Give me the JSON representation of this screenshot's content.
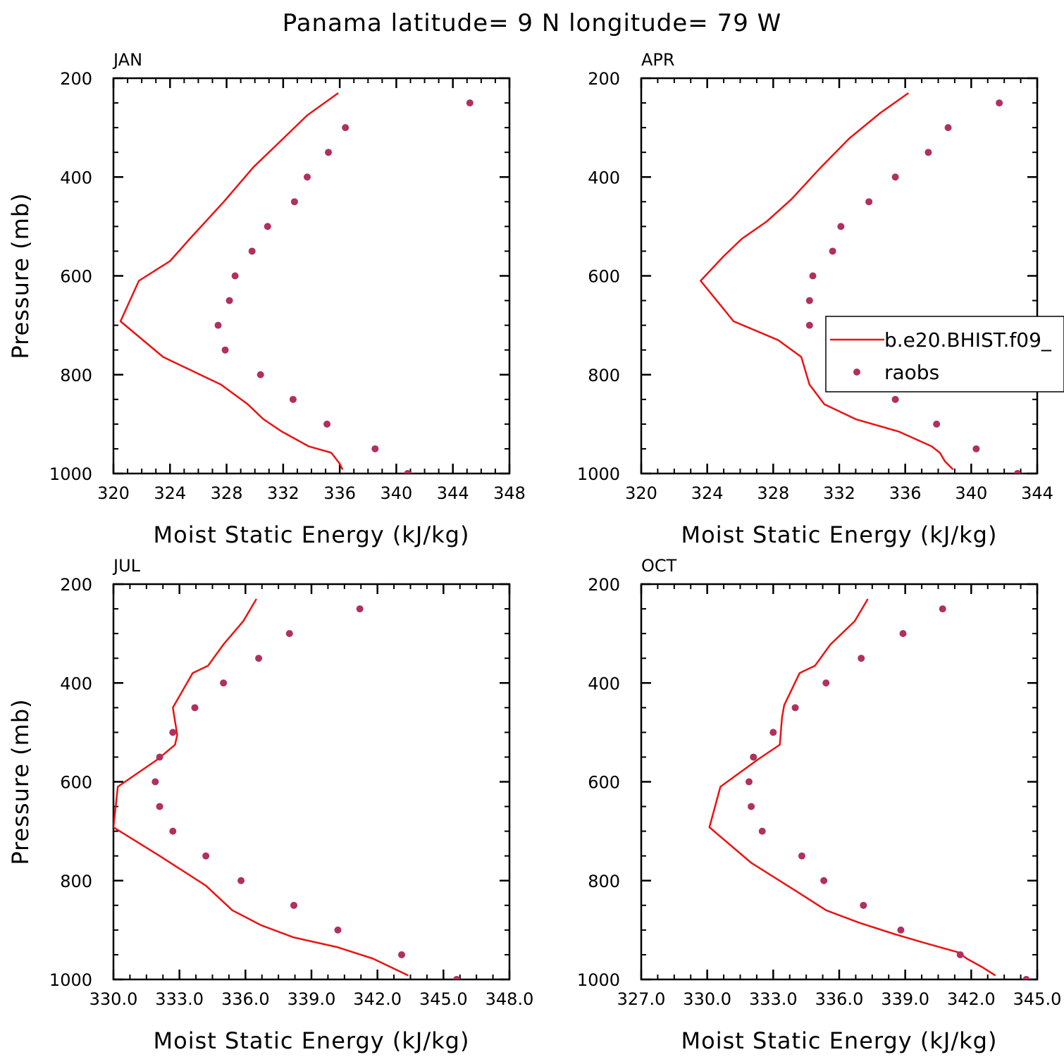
{
  "figure": {
    "title": "Panama  latitude= 9 N longitude= 79 W"
  },
  "colors": {
    "model_line": "#ee1111",
    "obs_points": "#b03060",
    "axes": "#000000"
  },
  "legend": {
    "items": [
      {
        "label": "b.e20.BHIST.f09_",
        "style": "line"
      },
      {
        "label": "raobs",
        "style": "markers"
      }
    ]
  },
  "chart_data": [
    {
      "type": "line",
      "title": "JAN",
      "xlabel": "Moist Static Energy (kJ/kg)",
      "ylabel": "Pressure (mb)",
      "xlim": [
        320,
        348
      ],
      "ylim": [
        1000,
        200
      ],
      "x_ticks": [
        "320",
        "324",
        "328",
        "332",
        "336",
        "340",
        "344",
        "348"
      ],
      "y_ticks": [
        "200",
        "400",
        "600",
        "800",
        "1000"
      ],
      "series": [
        {
          "style": "line",
          "x": [
            335.9,
            333.7,
            332.0,
            329.9,
            327.8,
            325.4,
            324.0,
            321.8,
            320.5,
            323.5,
            327.6,
            329.5,
            330.6,
            331.9,
            333.8,
            335.4,
            336.0,
            336.2
          ],
          "y": [
            230,
            275,
            322,
            380,
            450,
            525,
            570,
            610,
            692,
            764,
            820,
            860,
            890,
            915,
            945,
            958,
            980,
            992
          ]
        },
        {
          "style": "markers",
          "x": [
            345.2,
            336.4,
            335.2,
            333.7,
            332.8,
            330.9,
            329.8,
            328.6,
            328.2,
            327.4,
            327.9,
            330.4,
            332.7,
            335.1,
            338.5,
            340.8
          ],
          "y": [
            250,
            300,
            350,
            400,
            450,
            500,
            550,
            600,
            650,
            700,
            750,
            800,
            850,
            900,
            950,
            1000
          ]
        }
      ]
    },
    {
      "type": "line",
      "title": "APR",
      "xlabel": "Moist Static Energy (kJ/kg)",
      "ylabel": "",
      "xlim": [
        320,
        344
      ],
      "ylim": [
        1000,
        200
      ],
      "x_ticks": [
        "320",
        "324",
        "328",
        "332",
        "336",
        "340",
        "344"
      ],
      "y_ticks": [
        "200",
        "400",
        "600",
        "800",
        "1000"
      ],
      "series": [
        {
          "style": "line",
          "x": [
            336.2,
            334.5,
            332.6,
            330.9,
            329.1,
            327.6,
            326.1,
            325.0,
            323.6,
            325.6,
            328.3,
            329.7,
            330.2,
            331.1,
            333.0,
            335.6,
            337.6,
            338.1,
            338.4,
            338.9
          ],
          "y": [
            230,
            270,
            322,
            380,
            445,
            490,
            525,
            560,
            610,
            692,
            730,
            764,
            820,
            860,
            890,
            915,
            945,
            958,
            975,
            992
          ]
        },
        {
          "style": "markers",
          "x": [
            341.7,
            338.6,
            337.4,
            335.4,
            333.8,
            332.1,
            331.6,
            330.4,
            330.2,
            330.2,
            332.2,
            333.9,
            335.4,
            337.9,
            340.3,
            342.8
          ],
          "y": [
            250,
            300,
            350,
            400,
            450,
            500,
            550,
            600,
            650,
            700,
            750,
            800,
            850,
            900,
            950,
            1000
          ]
        }
      ]
    },
    {
      "type": "line",
      "title": "JUL",
      "xlabel": "Moist Static Energy (kJ/kg)",
      "ylabel": "Pressure (mb)",
      "xlim": [
        330,
        348
      ],
      "ylim": [
        1000,
        200
      ],
      "x_ticks": [
        "330.0",
        "333.0",
        "336.0",
        "339.0",
        "342.0",
        "345.0",
        "348.0"
      ],
      "y_ticks": [
        "200",
        "400",
        "600",
        "800",
        "1000"
      ],
      "series": [
        {
          "style": "line",
          "x": [
            336.5,
            335.9,
            335.0,
            334.3,
            333.6,
            332.7,
            332.9,
            332.8,
            332.0,
            330.2,
            330.0,
            332.1,
            334.2,
            335.4,
            336.7,
            338.2,
            340.2,
            341.8,
            343.4
          ],
          "y": [
            230,
            275,
            322,
            365,
            380,
            450,
            505,
            525,
            555,
            610,
            692,
            750,
            810,
            860,
            890,
            915,
            935,
            958,
            992
          ]
        },
        {
          "style": "markers",
          "x": [
            341.2,
            338.0,
            336.6,
            335.0,
            333.7,
            332.7,
            332.1,
            331.9,
            332.1,
            332.7,
            334.2,
            335.8,
            338.2,
            340.2,
            343.1,
            345.6
          ],
          "y": [
            250,
            300,
            350,
            400,
            450,
            500,
            550,
            600,
            650,
            700,
            750,
            800,
            850,
            900,
            950,
            1000
          ]
        }
      ]
    },
    {
      "type": "line",
      "title": "OCT",
      "xlabel": "Moist Static Energy (kJ/kg)",
      "ylabel": "",
      "xlim": [
        327,
        345
      ],
      "ylim": [
        1000,
        200
      ],
      "x_ticks": [
        "327.0",
        "330.0",
        "333.0",
        "336.0",
        "339.0",
        "342.0",
        "345.0"
      ],
      "y_ticks": [
        "200",
        "400",
        "600",
        "800",
        "1000"
      ],
      "series": [
        {
          "style": "line",
          "x": [
            337.3,
            336.7,
            335.6,
            334.9,
            334.2,
            333.5,
            333.4,
            333.3,
            332.3,
            330.6,
            330.1,
            332.0,
            334.0,
            335.4,
            336.9,
            338.5,
            339.8,
            341.4,
            341.8,
            342.5,
            343.1
          ],
          "y": [
            230,
            275,
            322,
            365,
            380,
            445,
            470,
            525,
            555,
            610,
            692,
            764,
            820,
            860,
            885,
            908,
            925,
            945,
            958,
            975,
            992
          ]
        },
        {
          "style": "markers",
          "x": [
            340.7,
            338.9,
            337.0,
            335.4,
            334.0,
            333.0,
            332.1,
            331.9,
            332.0,
            332.5,
            334.3,
            335.3,
            337.1,
            338.8,
            341.5,
            344.5
          ],
          "y": [
            250,
            300,
            350,
            400,
            450,
            500,
            550,
            600,
            650,
            700,
            750,
            800,
            850,
            900,
            950,
            1000
          ]
        }
      ]
    }
  ]
}
